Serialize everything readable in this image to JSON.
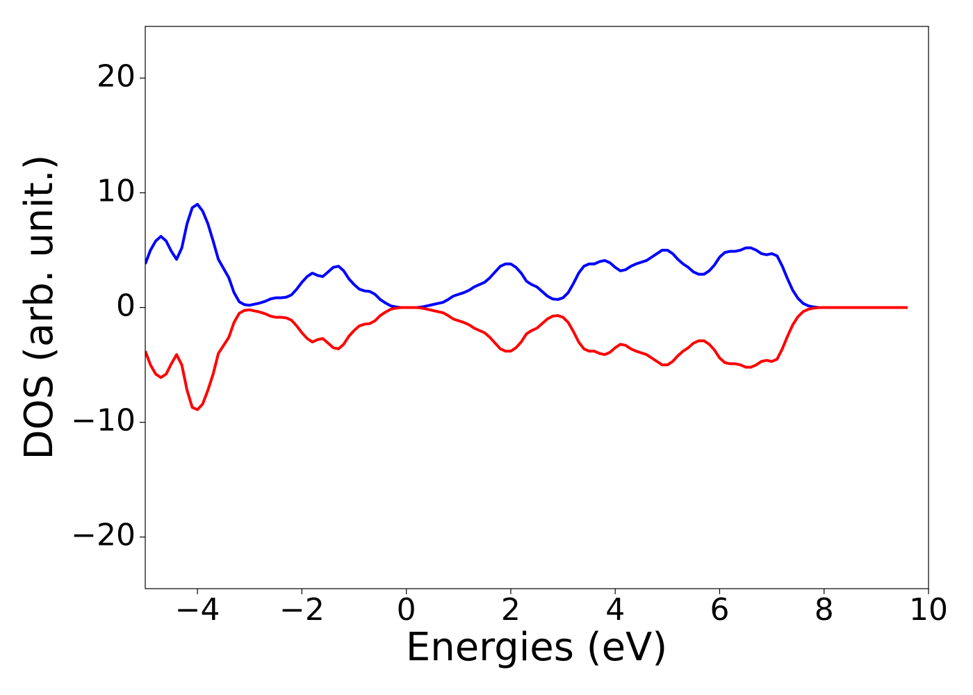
{
  "chart_data": {
    "type": "line",
    "xlabel": "Energies (eV)",
    "ylabel": "DOS (arb. unit.)",
    "xlim": [
      -5,
      10
    ],
    "ylim": [
      -24.5,
      24.5
    ],
    "xticks": [
      {
        "value": -4,
        "label": "−4"
      },
      {
        "value": -2,
        "label": "−2"
      },
      0,
      2,
      4,
      6,
      8,
      10
    ],
    "yticks": [
      {
        "value": -20,
        "label": "−20"
      },
      {
        "value": -10,
        "label": "−10"
      },
      0,
      10,
      20
    ],
    "x": [
      -5.0,
      -4.9,
      -4.8,
      -4.7,
      -4.6,
      -4.5,
      -4.4,
      -4.3,
      -4.2,
      -4.1,
      -4.0,
      -3.9,
      -3.8,
      -3.7,
      -3.6,
      -3.5,
      -3.4,
      -3.3,
      -3.2,
      -3.1,
      -3.0,
      -2.9,
      -2.8,
      -2.7,
      -2.6,
      -2.5,
      -2.4,
      -2.3,
      -2.2,
      -2.1,
      -2.0,
      -1.9,
      -1.8,
      -1.7,
      -1.6,
      -1.5,
      -1.4,
      -1.3,
      -1.2,
      -1.1,
      -1.0,
      -0.9,
      -0.8,
      -0.7,
      -0.6,
      -0.5,
      -0.4,
      -0.3,
      -0.2,
      -0.1,
      0.0,
      0.1,
      0.2,
      0.3,
      0.4,
      0.5,
      0.6,
      0.7,
      0.8,
      0.9,
      1.0,
      1.1,
      1.2,
      1.3,
      1.4,
      1.5,
      1.6,
      1.7,
      1.8,
      1.9,
      2.0,
      2.1,
      2.2,
      2.3,
      2.4,
      2.5,
      2.6,
      2.7,
      2.8,
      2.9,
      3.0,
      3.1,
      3.2,
      3.3,
      3.4,
      3.5,
      3.6,
      3.7,
      3.8,
      3.9,
      4.0,
      4.1,
      4.2,
      4.3,
      4.4,
      4.5,
      4.6,
      4.7,
      4.8,
      4.9,
      5.0,
      5.1,
      5.2,
      5.3,
      5.4,
      5.5,
      5.6,
      5.7,
      5.8,
      5.9,
      6.0,
      6.1,
      6.2,
      6.3,
      6.4,
      6.5,
      6.6,
      6.7,
      6.8,
      6.9,
      7.0,
      7.1,
      7.2,
      7.3,
      7.4,
      7.5,
      7.6,
      7.7,
      7.8,
      7.9,
      8.0,
      9.6
    ],
    "series": [
      {
        "color": "#0000ff",
        "values": [
          3.8,
          5.0,
          5.8,
          6.2,
          5.8,
          4.9,
          4.2,
          5.2,
          7.3,
          8.7,
          9.0,
          8.4,
          7.3,
          5.8,
          4.2,
          3.4,
          2.6,
          1.3,
          0.5,
          0.25,
          0.2,
          0.3,
          0.4,
          0.55,
          0.75,
          0.85,
          0.85,
          0.9,
          1.1,
          1.6,
          2.2,
          2.7,
          3.0,
          2.8,
          2.7,
          3.1,
          3.5,
          3.6,
          3.2,
          2.5,
          2.0,
          1.6,
          1.45,
          1.4,
          1.15,
          0.7,
          0.4,
          0.15,
          0.05,
          0,
          0,
          0,
          0,
          0.05,
          0.15,
          0.25,
          0.35,
          0.45,
          0.7,
          1.0,
          1.15,
          1.3,
          1.5,
          1.8,
          2.0,
          2.2,
          2.6,
          3.1,
          3.6,
          3.8,
          3.8,
          3.5,
          3.0,
          2.3,
          2.0,
          1.8,
          1.4,
          1.0,
          0.75,
          0.7,
          0.85,
          1.3,
          2.1,
          3.0,
          3.6,
          3.8,
          3.8,
          4.0,
          4.1,
          3.9,
          3.5,
          3.2,
          3.3,
          3.6,
          3.8,
          3.95,
          4.1,
          4.4,
          4.7,
          5.0,
          5.0,
          4.7,
          4.2,
          3.8,
          3.5,
          3.1,
          2.9,
          2.9,
          3.2,
          3.7,
          4.4,
          4.8,
          4.9,
          4.9,
          5.0,
          5.2,
          5.2,
          5.0,
          4.7,
          4.6,
          4.7,
          4.5,
          3.6,
          2.5,
          1.5,
          0.8,
          0.35,
          0.15,
          0.05,
          0,
          0,
          0
        ]
      },
      {
        "color": "#ff0000",
        "values": [
          -3.8,
          -5.0,
          -5.8,
          -6.1,
          -5.8,
          -4.9,
          -4.1,
          -5.0,
          -7.2,
          -8.7,
          -8.9,
          -8.4,
          -7.2,
          -5.8,
          -4.0,
          -3.3,
          -2.6,
          -1.3,
          -0.5,
          -0.25,
          -0.2,
          -0.3,
          -0.4,
          -0.55,
          -0.75,
          -0.85,
          -0.85,
          -0.9,
          -1.1,
          -1.6,
          -2.2,
          -2.7,
          -3.0,
          -2.8,
          -2.7,
          -3.1,
          -3.5,
          -3.6,
          -3.2,
          -2.5,
          -2.0,
          -1.6,
          -1.45,
          -1.4,
          -1.15,
          -0.7,
          -0.4,
          -0.15,
          -0.05,
          0,
          0,
          0,
          0,
          -0.05,
          -0.15,
          -0.25,
          -0.35,
          -0.45,
          -0.7,
          -1.0,
          -1.15,
          -1.3,
          -1.5,
          -1.8,
          -2.0,
          -2.2,
          -2.6,
          -3.1,
          -3.6,
          -3.8,
          -3.8,
          -3.5,
          -3.0,
          -2.3,
          -2.0,
          -1.8,
          -1.4,
          -1.0,
          -0.75,
          -0.7,
          -0.85,
          -1.3,
          -2.1,
          -3.0,
          -3.6,
          -3.8,
          -3.8,
          -4.0,
          -4.1,
          -3.9,
          -3.5,
          -3.2,
          -3.3,
          -3.6,
          -3.8,
          -3.95,
          -4.1,
          -4.4,
          -4.7,
          -5.0,
          -5.0,
          -4.7,
          -4.2,
          -3.8,
          -3.5,
          -3.1,
          -2.9,
          -2.9,
          -3.2,
          -3.7,
          -4.4,
          -4.8,
          -4.9,
          -4.9,
          -5.0,
          -5.2,
          -5.2,
          -5.0,
          -4.7,
          -4.6,
          -4.7,
          -4.5,
          -3.6,
          -2.5,
          -1.5,
          -0.8,
          -0.35,
          -0.15,
          -0.05,
          0,
          0,
          0
        ]
      }
    ]
  }
}
